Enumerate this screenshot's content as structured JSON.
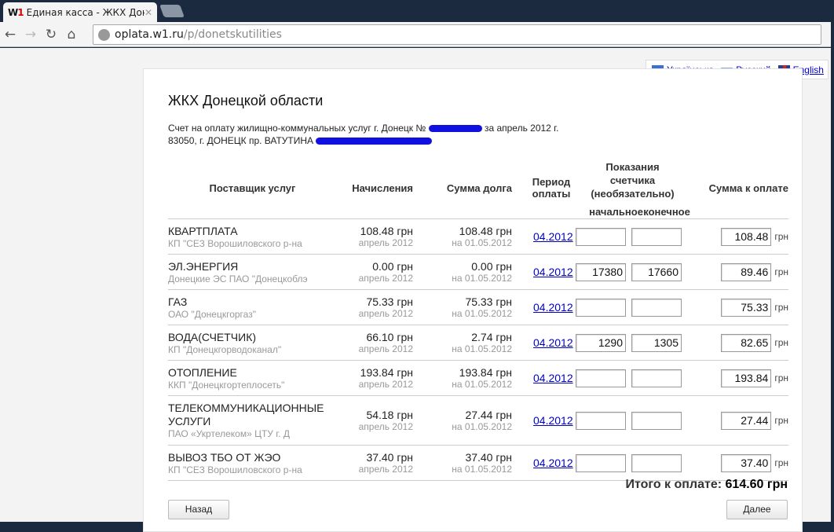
{
  "browser": {
    "tab_title": "Единая касса - ЖКХ Донец",
    "url_host": "oplata.w1.ru",
    "url_path": "/p/donetskutilities",
    "logo": "W1"
  },
  "languages": [
    {
      "label": "Українська",
      "flag": "ua"
    },
    {
      "label": "Русский",
      "flag": "ru"
    },
    {
      "label": "English",
      "flag": "gb"
    }
  ],
  "title": "ЖКХ Донецкой области",
  "desc": {
    "line1_a": "Счет на оплату жилищно-коммунальных услуг г. Донецк №",
    "line1_b": "за апрель 2012 г.",
    "line2": "83050, г. ДОНЕЦК пр. ВАТУТИНА"
  },
  "headers": {
    "provider": "Поставщик услуг",
    "charges": "Начисления",
    "debt": "Сумма долга",
    "period": "Период оплаты",
    "meter": "Показания счетчика (необязательно)",
    "start": "начальное",
    "end": "конечное",
    "sum": "Сумма к оплате"
  },
  "currency": "грн",
  "rows": [
    {
      "name": "КВАРТПЛАТА",
      "provider": "КП \"СЕЗ Ворошиловского р-на",
      "charge": "108.48 грн",
      "charge_sub": "апрель 2012",
      "debt": "108.48 грн",
      "debt_sub": "на 01.05.2012",
      "period": "04.2012",
      "start": "",
      "end": "",
      "sum": "108.48"
    },
    {
      "name": "ЭЛ.ЭНЕРГИЯ",
      "provider": "Донецкие ЭС ПАО \"Донецкоблэ",
      "charge": "0.00 грн",
      "charge_sub": "апрель 2012",
      "debt": "0.00 грн",
      "debt_sub": "на 01.05.2012",
      "period": "04.2012",
      "start": "17380",
      "end": "17660",
      "sum": "89.46"
    },
    {
      "name": "ГАЗ",
      "provider": "ОАО \"Донецкгоргаз\"",
      "charge": "75.33 грн",
      "charge_sub": "апрель 2012",
      "debt": "75.33 грн",
      "debt_sub": "на 01.05.2012",
      "period": "04.2012",
      "start": "",
      "end": "",
      "sum": "75.33"
    },
    {
      "name": "ВОДА(СЧЕТЧИК)",
      "provider": "КП \"Донецкгорводоканал\"",
      "charge": "66.10 грн",
      "charge_sub": "апрель 2012",
      "debt": "2.74 грн",
      "debt_sub": "на 01.05.2012",
      "period": "04.2012",
      "start": "1290",
      "end": "1305",
      "sum": "82.65"
    },
    {
      "name": "ОТОПЛЕНИЕ",
      "provider": "ККП \"Донецкгортеплосеть\"",
      "charge": "193.84 грн",
      "charge_sub": "апрель 2012",
      "debt": "193.84 грн",
      "debt_sub": "на 01.05.2012",
      "period": "04.2012",
      "start": "",
      "end": "",
      "sum": "193.84"
    },
    {
      "name": "ТЕЛЕКОММУНИКАЦИОННЫЕ УСЛУГИ",
      "provider": "ПАО «Укртелеком» ЦТУ г. Д",
      "charge": "54.18 грн",
      "charge_sub": "апрель 2012",
      "debt": "27.44 грн",
      "debt_sub": "на 01.05.2012",
      "period": "04.2012",
      "start": "",
      "end": "",
      "sum": "27.44"
    },
    {
      "name": "ВЫВОЗ ТБО ОТ ЖЭО",
      "provider": "КП \"СЕЗ Ворошиловского р-на",
      "charge": "37.40 грн",
      "charge_sub": "апрель 2012",
      "debt": "37.40 грн",
      "debt_sub": "на 01.05.2012",
      "period": "04.2012",
      "start": "",
      "end": "",
      "sum": "37.40"
    }
  ],
  "total": {
    "label": "Итого к оплате:",
    "value": "614.60 грн"
  },
  "buttons": {
    "back": "Назад",
    "next": "Далее"
  }
}
